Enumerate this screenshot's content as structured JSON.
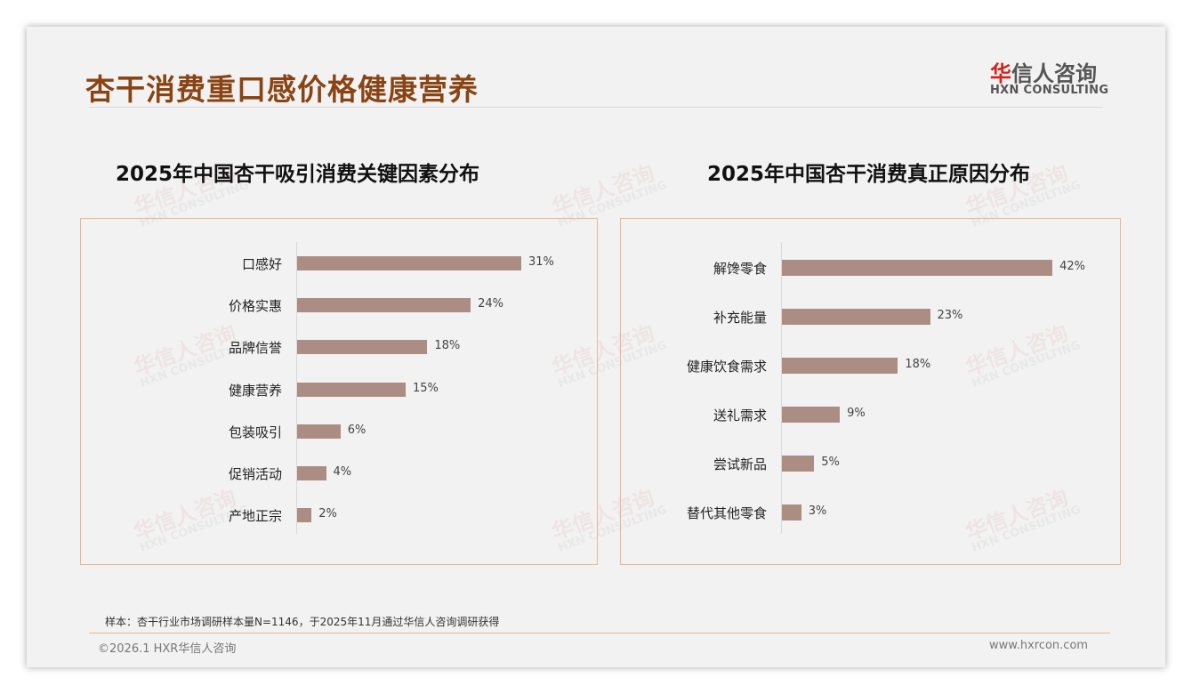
{
  "header": {
    "title": "杏干消费重口感价格健康营养",
    "logo_cn_red": "华",
    "logo_cn_rest": "信人咨询",
    "logo_en": "HXN CONSULTING"
  },
  "watermark": {
    "cn": "华信人咨询",
    "en": "HXN CONSULTING"
  },
  "chart_data": [
    {
      "type": "bar",
      "orientation": "horizontal",
      "title": "2025年中国杏干吸引消费关键因素分布",
      "categories": [
        "口感好",
        "价格实惠",
        "品牌信誉",
        "健康营养",
        "包装吸引",
        "促销活动",
        "产地正宗"
      ],
      "values": [
        31,
        24,
        18,
        15,
        6,
        4,
        2
      ],
      "labels": [
        "31%",
        "24%",
        "18%",
        "15%",
        "6%",
        "4%",
        "2%"
      ],
      "unit": "%",
      "color": "#ab8d83"
    },
    {
      "type": "bar",
      "orientation": "horizontal",
      "title": "2025年中国杏干消费真正原因分布",
      "categories": [
        "解馋零食",
        "补充能量",
        "健康饮食需求",
        "送礼需求",
        "尝试新品",
        "替代其他零食"
      ],
      "values": [
        42,
        23,
        18,
        9,
        5,
        3
      ],
      "labels": [
        "42%",
        "23%",
        "18%",
        "9%",
        "5%",
        "3%"
      ],
      "unit": "%",
      "color": "#ab8d83"
    }
  ],
  "footer": {
    "note": "样本：杏干行业市场调研样本量N=1146，于2025年11月通过华信人咨询调研获得",
    "copyright": "©2026.1 HXR华信人咨询",
    "site": "www.hxrcon.com"
  }
}
